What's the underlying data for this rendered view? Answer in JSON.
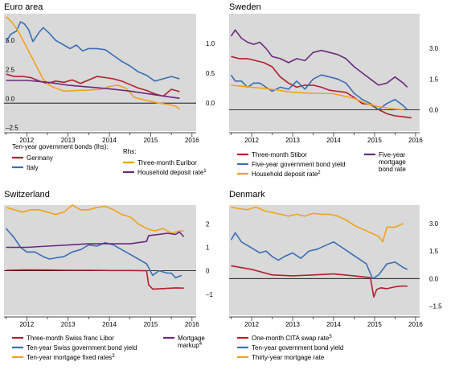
{
  "colors": {
    "red": "#b31f2b",
    "blue": "#3a6eb5",
    "orange": "#f0a21d",
    "purple": "#6a2b7d",
    "panel_bg": "#d9d9d9"
  },
  "chart_data": [
    {
      "type": "line",
      "title": "Euro area",
      "x_tick_labels": [
        "2012",
        "2013",
        "2014",
        "2015",
        "2016"
      ],
      "x_range": [
        2011.45,
        2016.1
      ],
      "left_axis": {
        "ticks": [
          "5.0",
          "2.5",
          "0.0",
          "-2.5"
        ],
        "range": [
          -2.8,
          7.3
        ]
      },
      "right_axis": {
        "ticks": [
          "1.0",
          "0.5",
          "0.0"
        ],
        "range": [
          -0.47,
          1.5
        ]
      },
      "legend_header_left": "Ten-year government bonds (lhs):",
      "legend_header_right": "Rhs:",
      "series": [
        {
          "name": "Germany",
          "axis": "left",
          "color": "red",
          "x": [
            2011.5,
            2011.7,
            2011.9,
            2012.1,
            2012.3,
            2012.5,
            2012.7,
            2012.9,
            2013.1,
            2013.3,
            2013.5,
            2013.7,
            2013.9,
            2014.1,
            2014.3,
            2014.5,
            2014.7,
            2014.9,
            2015.1,
            2015.3,
            2015.5,
            2015.7
          ],
          "y": [
            2.1,
            1.9,
            1.9,
            1.8,
            1.5,
            1.3,
            1.5,
            1.4,
            1.6,
            1.3,
            1.6,
            1.9,
            1.8,
            1.7,
            1.5,
            1.2,
            0.9,
            0.7,
            0.4,
            0.2,
            0.8,
            0.6
          ]
        },
        {
          "name": "Italy",
          "axis": "left",
          "color": "blue",
          "x": [
            2011.5,
            2011.6,
            2011.75,
            2011.85,
            2011.95,
            2012.05,
            2012.15,
            2012.3,
            2012.4,
            2012.55,
            2012.7,
            2012.9,
            2013.05,
            2013.2,
            2013.35,
            2013.5,
            2013.7,
            2013.9,
            2014.1,
            2014.3,
            2014.5,
            2014.7,
            2014.9,
            2015.1,
            2015.3,
            2015.5,
            2015.7
          ],
          "y": [
            4.8,
            5.5,
            5.8,
            6.6,
            6.4,
            5.9,
            4.9,
            5.7,
            6.1,
            5.6,
            5.0,
            4.6,
            4.3,
            4.6,
            4.1,
            4.3,
            4.3,
            4.2,
            3.7,
            3.2,
            2.8,
            2.3,
            2.0,
            1.5,
            1.7,
            1.9,
            1.7
          ]
        },
        {
          "name": "Three-month Euribor",
          "axis": "right",
          "color": "orange",
          "x": [
            2011.5,
            2011.65,
            2011.8,
            2011.95,
            2012.1,
            2012.25,
            2012.4,
            2012.55,
            2012.7,
            2012.9,
            2013.2,
            2013.5,
            2013.8,
            2014.0,
            2014.2,
            2014.4,
            2014.6,
            2014.8,
            2015.0,
            2015.2,
            2015.4,
            2015.6,
            2015.7
          ],
          "y": [
            1.45,
            1.35,
            1.2,
            1.0,
            0.8,
            0.6,
            0.4,
            0.3,
            0.25,
            0.2,
            0.21,
            0.22,
            0.23,
            0.28,
            0.3,
            0.25,
            0.1,
            0.06,
            0.03,
            0.0,
            -0.02,
            -0.05,
            -0.1
          ]
        },
        {
          "name": "Household deposit rate",
          "label_note": "1",
          "axis": "right",
          "color": "purple",
          "x": [
            2011.5,
            2012.0,
            2012.5,
            2013.0,
            2013.5,
            2014.0,
            2014.5,
            2015.0,
            2015.5,
            2015.7
          ],
          "y": [
            0.38,
            0.38,
            0.35,
            0.3,
            0.27,
            0.24,
            0.2,
            0.15,
            0.1,
            0.08
          ]
        }
      ],
      "legend": [
        "Germany",
        "Italy",
        "Three-month Euribor",
        "Household deposit rate"
      ]
    },
    {
      "type": "line",
      "title": "Sweden",
      "x_tick_labels": [
        "2012",
        "2013",
        "2014",
        "2015",
        "2016"
      ],
      "x_range": [
        2011.45,
        2016.1
      ],
      "right_axis": {
        "ticks": [
          "3.0",
          "1.5",
          "0.0"
        ],
        "range": [
          -1.05,
          4.7
        ]
      },
      "series": [
        {
          "name": "Three-month Stibor",
          "color": "red",
          "x": [
            2011.5,
            2011.7,
            2011.9,
            2012.1,
            2012.3,
            2012.5,
            2012.7,
            2012.9,
            2013.1,
            2013.3,
            2013.5,
            2013.7,
            2013.9,
            2014.1,
            2014.3,
            2014.5,
            2014.7,
            2014.9,
            2015.1,
            2015.3,
            2015.5,
            2015.7,
            2015.9
          ],
          "y": [
            2.6,
            2.5,
            2.5,
            2.4,
            2.3,
            2.1,
            1.6,
            1.3,
            1.1,
            1.2,
            1.2,
            1.1,
            0.95,
            0.9,
            0.85,
            0.6,
            0.3,
            0.25,
            0.0,
            -0.2,
            -0.3,
            -0.35,
            -0.4
          ]
        },
        {
          "name": "Five-year government bond yield",
          "color": "blue",
          "x": [
            2011.5,
            2011.6,
            2011.75,
            2011.9,
            2012.05,
            2012.2,
            2012.35,
            2012.5,
            2012.7,
            2012.9,
            2013.1,
            2013.3,
            2013.5,
            2013.7,
            2013.9,
            2014.1,
            2014.3,
            2014.5,
            2014.7,
            2014.9,
            2015.1,
            2015.3,
            2015.5,
            2015.7,
            2015.8
          ],
          "y": [
            1.7,
            1.4,
            1.4,
            1.1,
            1.3,
            1.3,
            1.1,
            0.9,
            1.1,
            1.0,
            1.4,
            1.0,
            1.5,
            1.7,
            1.6,
            1.5,
            1.3,
            0.8,
            0.5,
            0.3,
            0.0,
            0.3,
            0.5,
            0.2,
            0.0
          ]
        },
        {
          "name": "Household deposit rate",
          "label_note": "2",
          "color": "orange",
          "x": [
            2011.5,
            2012.0,
            2012.5,
            2013.0,
            2013.5,
            2014.0,
            2014.5,
            2014.8,
            2015.1,
            2015.4,
            2015.7
          ],
          "y": [
            1.2,
            1.1,
            1.0,
            0.85,
            0.8,
            0.78,
            0.55,
            0.3,
            0.15,
            0.05,
            0.0
          ]
        },
        {
          "name": "Five-year mortgage bond rate",
          "color": "purple",
          "x": [
            2011.5,
            2011.6,
            2011.75,
            2011.9,
            2012.05,
            2012.2,
            2012.35,
            2012.5,
            2012.7,
            2012.9,
            2013.1,
            2013.3,
            2013.5,
            2013.7,
            2013.9,
            2014.1,
            2014.3,
            2014.5,
            2014.7,
            2014.9,
            2015.1,
            2015.3,
            2015.5,
            2015.7,
            2015.8
          ],
          "y": [
            3.6,
            3.9,
            3.5,
            3.3,
            3.2,
            3.3,
            3.0,
            2.6,
            2.5,
            2.3,
            2.5,
            2.4,
            2.8,
            2.9,
            2.8,
            2.7,
            2.5,
            2.1,
            1.8,
            1.5,
            1.2,
            1.3,
            1.6,
            1.3,
            1.1
          ]
        }
      ],
      "legend": [
        "Three-month Stibor",
        "Five-year government bond yield",
        "Household deposit rate",
        "Five-year mortgage bond rate"
      ],
      "legend_wrapped": {
        "five_year_mortgage": [
          "Five-year",
          "mortgage",
          "bond rate"
        ]
      }
    },
    {
      "type": "line",
      "title": "Switzerland",
      "x_tick_labels": [
        "2012",
        "2013",
        "2014",
        "2015",
        "2016"
      ],
      "x_range": [
        2011.45,
        2016.1
      ],
      "right_axis": {
        "ticks": [
          "2",
          "1",
          "0",
          "–1"
        ],
        "range": [
          -1.9,
          2.8
        ]
      },
      "series": [
        {
          "name": "Three-month Swiss franc Libor",
          "color": "red",
          "x": [
            2011.5,
            2012.0,
            2012.5,
            2013.0,
            2013.5,
            2014.0,
            2014.5,
            2014.9,
            2014.95,
            2015.05,
            2015.3,
            2015.6,
            2015.8
          ],
          "y": [
            0.02,
            0.04,
            0.03,
            0.02,
            0.02,
            0.01,
            0.01,
            0.0,
            -0.6,
            -0.78,
            -0.76,
            -0.73,
            -0.74
          ]
        },
        {
          "name": "Ten-year Swiss government bond yield",
          "color": "blue",
          "x": [
            2011.5,
            2011.7,
            2011.85,
            2012.0,
            2012.2,
            2012.4,
            2012.55,
            2012.7,
            2012.9,
            2013.1,
            2013.3,
            2013.5,
            2013.7,
            2013.9,
            2014.1,
            2014.3,
            2014.5,
            2014.7,
            2014.9,
            2015.05,
            2015.2,
            2015.4,
            2015.5,
            2015.6,
            2015.75
          ],
          "y": [
            1.8,
            1.4,
            1.0,
            0.8,
            0.8,
            0.6,
            0.5,
            0.55,
            0.6,
            0.8,
            0.9,
            1.1,
            1.05,
            1.2,
            1.1,
            0.9,
            0.7,
            0.5,
            0.3,
            -0.2,
            0.0,
            -0.1,
            -0.1,
            -0.3,
            -0.2
          ]
        },
        {
          "name": "Ten-year mortgage fixed rates",
          "label_note": "3",
          "color": "orange",
          "x": [
            2011.5,
            2011.7,
            2011.9,
            2012.1,
            2012.3,
            2012.5,
            2012.7,
            2012.9,
            2013.1,
            2013.3,
            2013.5,
            2013.7,
            2013.9,
            2014.1,
            2014.3,
            2014.5,
            2014.7,
            2014.9,
            2015.1,
            2015.3,
            2015.5,
            2015.7,
            2015.8
          ],
          "y": [
            2.7,
            2.6,
            2.5,
            2.6,
            2.6,
            2.5,
            2.4,
            2.5,
            2.8,
            2.6,
            2.6,
            2.7,
            2.75,
            2.6,
            2.4,
            2.3,
            2.0,
            1.8,
            1.7,
            1.8,
            1.6,
            1.7,
            1.7
          ]
        },
        {
          "name": "Mortgage markup",
          "label_note": "4",
          "color": "purple",
          "x": [
            2011.5,
            2012.0,
            2012.5,
            2013.0,
            2013.5,
            2014.0,
            2014.5,
            2014.9,
            2014.95,
            2015.2,
            2015.4,
            2015.6,
            2015.7,
            2015.8
          ],
          "y": [
            1.0,
            1.0,
            1.05,
            1.1,
            1.15,
            1.15,
            1.15,
            1.25,
            1.5,
            1.55,
            1.6,
            1.55,
            1.65,
            1.45
          ]
        }
      ],
      "legend": [
        "Three-month Swiss franc Libor",
        "Ten-year Swiss government bond yield",
        "Ten-year mortgage fixed rates",
        "Mortgage markup"
      ],
      "legend_wrapped": {
        "mortgage_markup": [
          "Mortgage",
          "markup"
        ]
      }
    },
    {
      "type": "line",
      "title": "Denmark",
      "x_tick_labels": [
        "2012",
        "2013",
        "2014",
        "2015",
        "2016"
      ],
      "x_range": [
        2011.45,
        2016.1
      ],
      "right_axis": {
        "ticks": [
          "3.0",
          "1.5",
          "0.0",
          "–1.5"
        ],
        "range": [
          -2.0,
          4.0
        ]
      },
      "series": [
        {
          "name": "One-month CITA swap rate",
          "label_note": "5",
          "color": "red",
          "x": [
            2011.5,
            2012.0,
            2012.5,
            2013.0,
            2013.5,
            2014.0,
            2014.5,
            2014.9,
            2014.98,
            2015.05,
            2015.15,
            2015.3,
            2015.5,
            2015.7,
            2015.8
          ],
          "y": [
            0.7,
            0.5,
            0.2,
            0.15,
            0.2,
            0.25,
            0.15,
            0.05,
            -1.0,
            -0.6,
            -0.5,
            -0.55,
            -0.45,
            -0.4,
            -0.42
          ]
        },
        {
          "name": "Ten-year government bond yield",
          "color": "blue",
          "x": [
            2011.5,
            2011.6,
            2011.75,
            2011.9,
            2012.05,
            2012.2,
            2012.35,
            2012.5,
            2012.65,
            2012.8,
            2013.0,
            2013.2,
            2013.4,
            2013.6,
            2013.8,
            2014.0,
            2014.2,
            2014.4,
            2014.6,
            2014.8,
            2014.95,
            2015.1,
            2015.3,
            2015.5,
            2015.7,
            2015.8
          ],
          "y": [
            2.1,
            2.5,
            2.0,
            1.8,
            1.6,
            1.4,
            1.5,
            1.2,
            1.0,
            1.2,
            1.4,
            1.1,
            1.5,
            1.6,
            1.8,
            2.0,
            1.7,
            1.4,
            1.1,
            0.8,
            0.0,
            0.2,
            0.8,
            0.9,
            0.6,
            0.5
          ]
        },
        {
          "name": "Thirty-year mortgage rate",
          "color": "orange",
          "x": [
            2011.5,
            2011.7,
            2011.9,
            2012.1,
            2012.3,
            2012.5,
            2012.7,
            2012.9,
            2013.1,
            2013.3,
            2013.5,
            2013.7,
            2013.9,
            2014.1,
            2014.3,
            2014.5,
            2014.7,
            2014.9,
            2015.1,
            2015.2,
            2015.3,
            2015.5,
            2015.7
          ],
          "y": [
            3.9,
            3.8,
            3.75,
            3.9,
            3.7,
            3.6,
            3.5,
            3.4,
            3.5,
            3.4,
            3.55,
            3.5,
            3.5,
            3.4,
            3.2,
            2.9,
            2.7,
            2.5,
            2.3,
            2.0,
            2.8,
            2.8,
            3.0
          ]
        }
      ],
      "legend": [
        "One-month CITA swap rate",
        "Ten-year government bond yield",
        "Thirty-year mortgage rate"
      ]
    }
  ]
}
